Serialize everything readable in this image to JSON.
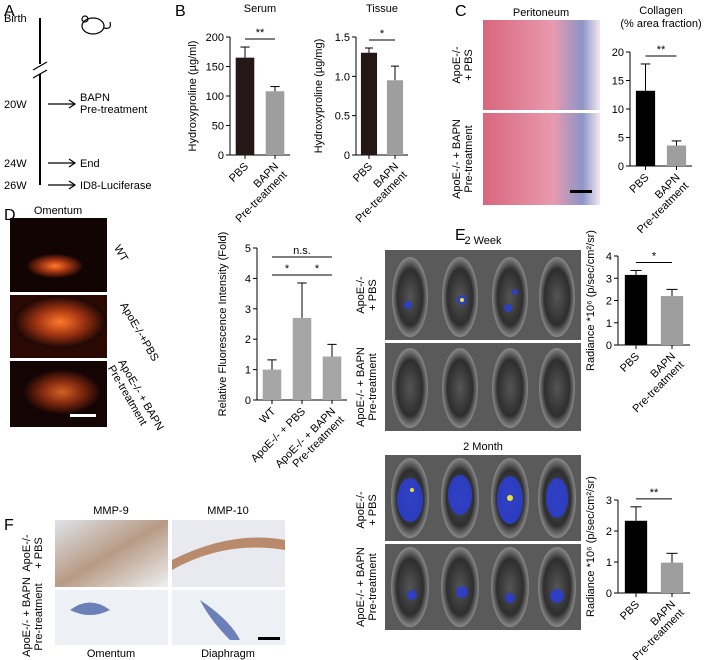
{
  "panel_labels": [
    "A",
    "B",
    "C",
    "D",
    "E",
    "F"
  ],
  "timeline": {
    "times": [
      "Birth",
      "20W",
      "24W",
      "26W"
    ],
    "events": [
      [
        "BAPN",
        "Pre-treatment"
      ],
      [
        "End"
      ],
      [
        "ID8-Luciferase"
      ]
    ]
  },
  "panel_c": {
    "image_title": "Peritoneum",
    "rows": [
      [
        "ApoE-/-",
        "+ PBS"
      ],
      [
        "ApoE-/- + BAPN",
        "Pre-treatment"
      ]
    ]
  },
  "panel_d": {
    "image_title": "Omentum",
    "rows": [
      [
        "WT"
      ],
      [
        "ApoE-/-+PBS"
      ],
      [
        "ApoE-/- + BAPN",
        "Pre-treatment"
      ]
    ]
  },
  "panel_e": {
    "timepoints": [
      "2 Week",
      "2 Month"
    ],
    "rows": [
      [
        "ApoE-/-",
        "+ PBS"
      ],
      [
        "ApoE-/- + BAPN",
        "Pre-treatment"
      ]
    ]
  },
  "panel_f": {
    "columns": [
      "MMP-9",
      "MMP-10"
    ],
    "rows": [
      [
        "ApoE-/-",
        "+ PBS"
      ],
      [
        "ApoE-/- + BAPN",
        "Pre-treatment"
      ]
    ],
    "tissues": [
      "Omentum",
      "Diaphragm"
    ]
  },
  "chart_data": [
    {
      "type": "bar",
      "title": [
        "Serum"
      ],
      "ylabel": "Hydroxyproline (µg/ml)",
      "categories": [
        [
          "PBS"
        ],
        [
          "BAPN",
          "Pre-treatment"
        ]
      ],
      "values": [
        165,
        108
      ],
      "errors": [
        18,
        8
      ],
      "colors": [
        "#231815",
        "#9e9e9e"
      ],
      "ylim": [
        0,
        200
      ],
      "yticks": [
        0,
        50,
        100,
        150,
        200
      ],
      "significance": [
        {
          "from": 0,
          "to": 1,
          "label": "**"
        }
      ]
    },
    {
      "type": "bar",
      "title": [
        "Tissue"
      ],
      "ylabel": "Hydroxyproline (µg/mg)",
      "categories": [
        [
          "PBS"
        ],
        [
          "BAPN",
          "Pre-treatment"
        ]
      ],
      "values": [
        1.3,
        0.95
      ],
      "errors": [
        0.06,
        0.18
      ],
      "colors": [
        "#231815",
        "#9e9e9e"
      ],
      "ylim": [
        0,
        1.5
      ],
      "yticks": [
        0,
        0.5,
        {
          "value": 1,
          "label": "1.0"
        },
        1.5
      ],
      "significance": [
        {
          "from": 0,
          "to": 1,
          "label": "*"
        }
      ]
    },
    {
      "type": "bar",
      "title": [
        "Collagen",
        "(% area fraction)"
      ],
      "categories": [
        [
          "PBS"
        ],
        [
          "BAPN",
          "Pre-treatment"
        ]
      ],
      "values": [
        13.2,
        3.6
      ],
      "errors": [
        4.7,
        0.8
      ],
      "colors": [
        "#000000",
        "#9e9e9e"
      ],
      "ylim": [
        0,
        20
      ],
      "yticks": [
        0,
        5,
        10,
        15,
        20
      ],
      "significance": [
        {
          "from": 0,
          "to": 1,
          "label": "**"
        }
      ]
    },
    {
      "type": "bar",
      "ylabel": "Relative Fluorescence Intensity (Fold)",
      "categories": [
        [
          "WT"
        ],
        [
          "ApoE-/- + PBS"
        ],
        [
          "ApoE-/- + BAPN",
          "Pre-treatment"
        ]
      ],
      "values": [
        1.0,
        2.7,
        1.43
      ],
      "errors": [
        0.32,
        1.15,
        0.4
      ],
      "colors": [
        "#a6a6a6",
        "#a6a6a6",
        "#a6a6a6"
      ],
      "ylim": [
        0,
        5
      ],
      "yticks": [
        0,
        1,
        2,
        3,
        4,
        5
      ],
      "significance": [
        {
          "from": 0,
          "to": 1,
          "label": "*"
        },
        {
          "from": 1,
          "to": 2,
          "label": "*"
        },
        {
          "from": 0,
          "to": 2,
          "label": "n.s."
        }
      ]
    },
    {
      "type": "bar",
      "ylabel": "Radiance *10⁶ (p/sec/cm²/sr)",
      "categories": [
        [
          "PBS"
        ],
        [
          "BAPN",
          "Pre-treatment"
        ]
      ],
      "values": [
        3.15,
        2.2
      ],
      "errors": [
        0.2,
        0.3
      ],
      "colors": [
        "#000000",
        "#9e9e9e"
      ],
      "ylim": [
        0,
        4
      ],
      "yticks": [
        0,
        1,
        2,
        3,
        4
      ],
      "significance": [
        {
          "from": 0,
          "to": 1,
          "label": "*"
        }
      ]
    },
    {
      "type": "bar",
      "ylabel": "Radiance *10⁶ (p/sec/cm²/sr)",
      "categories": [
        [
          "PBS"
        ],
        [
          "BAPN",
          "Pre-treatment"
        ]
      ],
      "values": [
        2.33,
        0.98
      ],
      "errors": [
        0.45,
        0.3
      ],
      "colors": [
        "#000000",
        "#9e9e9e"
      ],
      "ylim": [
        0,
        3
      ],
      "yticks": [
        0,
        1,
        2,
        3
      ],
      "significance": [
        {
          "from": 0,
          "to": 1,
          "label": "**"
        }
      ]
    }
  ]
}
